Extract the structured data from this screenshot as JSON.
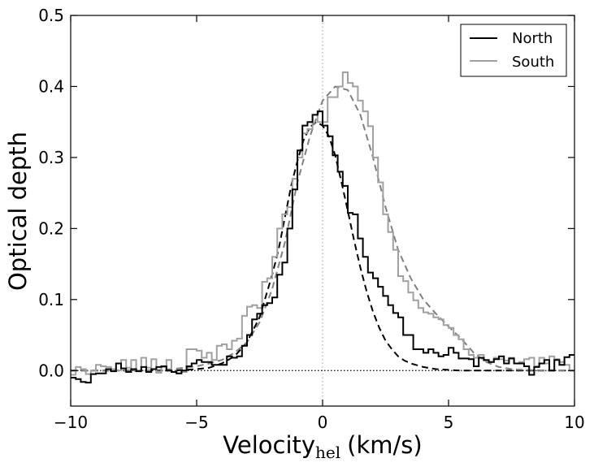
{
  "chart_data": {
    "type": "line",
    "xlabel_main": "Velocity",
    "xlabel_sub": "hel",
    "xlabel_units": "(km/s)",
    "ylabel": "Optical depth",
    "xlim": [
      -10,
      10
    ],
    "ylim": [
      -0.05,
      0.5
    ],
    "xticks": [
      -10,
      -5,
      0,
      5,
      10
    ],
    "yticks": [
      0.0,
      0.1,
      0.2,
      0.3,
      0.4,
      0.5
    ],
    "xtick_labels": [
      "−10",
      "−5",
      "0",
      "5",
      "10"
    ],
    "ytick_labels": [
      "0.0",
      "0.1",
      "0.2",
      "0.3",
      "0.4",
      "0.5"
    ],
    "legend_position": "top-right",
    "reference_lines": [
      {
        "orientation": "vertical",
        "value": 0,
        "style": "dotted",
        "color": "#aaaaaa"
      },
      {
        "orientation": "horizontal",
        "value": 0,
        "style": "dotted",
        "color": "#000000"
      }
    ],
    "series": [
      {
        "name": "North",
        "style": "step",
        "color": "#000000",
        "x": [
          -10.0,
          -9.8,
          -9.6,
          -9.4,
          -9.2,
          -9.0,
          -8.8,
          -8.6,
          -8.4,
          -8.2,
          -8.0,
          -7.8,
          -7.6,
          -7.4,
          -7.2,
          -7.0,
          -6.8,
          -6.6,
          -6.4,
          -6.2,
          -6.0,
          -5.8,
          -5.6,
          -5.4,
          -5.2,
          -5.0,
          -4.8,
          -4.6,
          -4.4,
          -4.2,
          -4.0,
          -3.8,
          -3.6,
          -3.4,
          -3.2,
          -3.0,
          -2.8,
          -2.6,
          -2.4,
          -2.2,
          -2.0,
          -1.8,
          -1.6,
          -1.4,
          -1.2,
          -1.0,
          -0.8,
          -0.6,
          -0.4,
          -0.2,
          0.0,
          0.2,
          0.4,
          0.6,
          0.8,
          1.0,
          1.2,
          1.4,
          1.6,
          1.8,
          2.0,
          2.2,
          2.4,
          2.6,
          2.8,
          3.0,
          3.2,
          3.4,
          3.6,
          3.8,
          4.0,
          4.2,
          4.4,
          4.6,
          4.8,
          5.0,
          5.2,
          5.4,
          5.6,
          5.8,
          6.0,
          6.2,
          6.4,
          6.6,
          6.8,
          7.0,
          7.2,
          7.4,
          7.6,
          7.8,
          8.0,
          8.2,
          8.4,
          8.6,
          8.8,
          9.0,
          9.2,
          9.4,
          9.6,
          9.8
        ],
        "y": [
          -0.01,
          -0.012,
          -0.016,
          -0.017,
          -0.005,
          -0.004,
          -0.004,
          0.002,
          -0.001,
          0.01,
          0.003,
          -0.002,
          0.002,
          -0.001,
          0.005,
          -0.002,
          0.002,
          0.005,
          0.006,
          0.0,
          -0.002,
          -0.004,
          0.0,
          0.006,
          0.01,
          0.015,
          0.012,
          0.012,
          0.008,
          0.008,
          0.008,
          0.02,
          0.018,
          0.02,
          0.035,
          0.05,
          0.072,
          0.08,
          0.092,
          0.095,
          0.103,
          0.135,
          0.152,
          0.2,
          0.255,
          0.31,
          0.345,
          0.35,
          0.36,
          0.365,
          0.345,
          0.33,
          0.303,
          0.28,
          0.26,
          0.222,
          0.22,
          0.186,
          0.16,
          0.138,
          0.13,
          0.118,
          0.105,
          0.092,
          0.081,
          0.075,
          0.05,
          0.05,
          0.03,
          0.03,
          0.025,
          0.03,
          0.025,
          0.02,
          0.022,
          0.032,
          0.025,
          0.017,
          0.017,
          0.016,
          0.006,
          0.018,
          0.015,
          0.012,
          0.016,
          0.02,
          0.01,
          0.017,
          0.01,
          0.01,
          0.006,
          -0.006,
          0.005,
          0.01,
          0.015,
          0.0,
          0.015,
          0.008,
          0.019,
          0.022
        ]
      },
      {
        "name": "South",
        "style": "step",
        "color": "#a0a0a0",
        "x": [
          -10.0,
          -9.8,
          -9.6,
          -9.4,
          -9.2,
          -9.0,
          -8.8,
          -8.6,
          -8.4,
          -8.2,
          -8.0,
          -7.8,
          -7.6,
          -7.4,
          -7.2,
          -7.0,
          -6.8,
          -6.6,
          -6.4,
          -6.2,
          -6.0,
          -5.8,
          -5.6,
          -5.4,
          -5.2,
          -5.0,
          -4.8,
          -4.6,
          -4.4,
          -4.2,
          -4.0,
          -3.8,
          -3.6,
          -3.4,
          -3.2,
          -3.0,
          -2.8,
          -2.6,
          -2.4,
          -2.2,
          -2.0,
          -1.8,
          -1.6,
          -1.4,
          -1.2,
          -1.0,
          -0.8,
          -0.6,
          -0.4,
          -0.2,
          0.0,
          0.2,
          0.4,
          0.6,
          0.8,
          1.0,
          1.2,
          1.4,
          1.6,
          1.8,
          2.0,
          2.2,
          2.4,
          2.6,
          2.8,
          3.0,
          3.2,
          3.4,
          3.6,
          3.8,
          4.0,
          4.2,
          4.4,
          4.6,
          4.8,
          5.0,
          5.2,
          5.4,
          5.6,
          5.8,
          6.0,
          6.2,
          6.4,
          6.6,
          6.8,
          7.0,
          7.2,
          7.4,
          7.6,
          7.8,
          8.0,
          8.2,
          8.4,
          8.6,
          8.8,
          9.0,
          9.2,
          9.4,
          9.6,
          9.8
        ],
        "y": [
          -0.006,
          0.005,
          0.002,
          -0.005,
          0.0,
          0.008,
          0.006,
          0.005,
          0.002,
          0.0,
          0.015,
          0.004,
          0.015,
          0.0,
          0.018,
          0.004,
          0.016,
          -0.003,
          0.005,
          0.015,
          -0.002,
          -0.004,
          -0.002,
          0.03,
          0.03,
          0.028,
          0.018,
          0.025,
          0.015,
          0.035,
          0.037,
          0.03,
          0.042,
          0.045,
          0.077,
          0.09,
          0.092,
          0.088,
          0.125,
          0.13,
          0.16,
          0.2,
          0.22,
          0.23,
          0.27,
          0.3,
          0.334,
          0.34,
          0.36,
          0.35,
          0.35,
          0.385,
          0.385,
          0.4,
          0.42,
          0.405,
          0.4,
          0.38,
          0.365,
          0.344,
          0.3,
          0.265,
          0.22,
          0.195,
          0.17,
          0.133,
          0.126,
          0.11,
          0.099,
          0.088,
          0.082,
          0.08,
          0.075,
          0.072,
          0.064,
          0.06,
          0.05,
          0.044,
          0.03,
          0.022,
          0.018,
          0.022,
          0.014,
          0.012,
          0.018,
          0.016,
          0.014,
          0.018,
          0.01,
          0.012,
          0.016,
          0.018,
          0.006,
          0.018,
          0.01,
          0.02,
          0.016,
          0.012,
          0.008,
          0.0
        ]
      }
    ],
    "fits": [
      {
        "for": "North",
        "style": "dashed",
        "color": "#000000",
        "x": [
          -10,
          -9,
          -8,
          -7,
          -6,
          -5,
          -4.5,
          -4,
          -3.5,
          -3,
          -2.5,
          -2,
          -1.75,
          -1.5,
          -1.25,
          -1,
          -0.75,
          -0.5,
          -0.25,
          0,
          0.25,
          0.5,
          0.75,
          1,
          1.25,
          1.5,
          1.75,
          2,
          2.25,
          2.5,
          2.75,
          3,
          3.25,
          3.5,
          4,
          4.5,
          5,
          5.5,
          6,
          7,
          8,
          9,
          10
        ],
        "y": [
          0,
          0,
          0,
          0,
          0,
          0.002,
          0.004,
          0.01,
          0.02,
          0.04,
          0.075,
          0.135,
          0.17,
          0.215,
          0.26,
          0.295,
          0.325,
          0.343,
          0.35,
          0.345,
          0.33,
          0.303,
          0.265,
          0.225,
          0.183,
          0.145,
          0.111,
          0.083,
          0.06,
          0.042,
          0.03,
          0.02,
          0.014,
          0.01,
          0.005,
          0.002,
          0.001,
          0,
          0,
          0,
          0,
          0,
          0
        ]
      },
      {
        "for": "South",
        "style": "dashed",
        "color": "#808080",
        "x": [
          -10,
          -9,
          -8,
          -7,
          -6,
          -5,
          -4.5,
          -4,
          -3.5,
          -3,
          -2.5,
          -2,
          -1.5,
          -1,
          -0.5,
          0,
          0.5,
          1,
          1.5,
          2,
          2.5,
          3,
          3.5,
          4,
          4.5,
          5,
          5.5,
          6,
          6.5,
          7,
          7.5,
          8,
          9,
          10
        ],
        "y": [
          0,
          0,
          0,
          0,
          0.002,
          0.006,
          0.01,
          0.015,
          0.025,
          0.04,
          0.068,
          0.115,
          0.18,
          0.265,
          0.33,
          0.38,
          0.4,
          0.395,
          0.36,
          0.3,
          0.23,
          0.17,
          0.13,
          0.1,
          0.08,
          0.062,
          0.045,
          0.025,
          0.012,
          0.005,
          0.002,
          0.001,
          0,
          0
        ]
      }
    ]
  }
}
